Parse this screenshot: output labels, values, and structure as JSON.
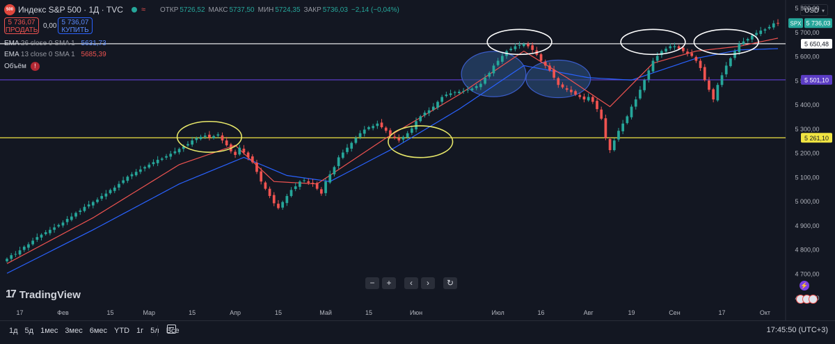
{
  "header": {
    "logo_text": "500",
    "title": "Индекс S&P 500 · 1Д · TVC",
    "wave_icon": "≈",
    "ohlc": [
      {
        "label": "ОТКР",
        "value": "5726,52"
      },
      {
        "label": "МАКС",
        "value": "5737,50"
      },
      {
        "label": "МИН",
        "value": "5724,35"
      },
      {
        "label": "ЗАКР",
        "value": "5736,03"
      }
    ],
    "change": "−2,14 (−0,04%)",
    "currency": "USD"
  },
  "trade": {
    "sell_price": "5 736,07",
    "sell_label": "ПРОДАТЬ",
    "spread": "0,00",
    "buy_price": "5 736,07",
    "buy_label": "КУПИТЬ"
  },
  "indicators": [
    {
      "name": "EMA",
      "params": "26 close 0 SMA 1",
      "value": "5631,73",
      "color": "#2962ff"
    },
    {
      "name": "EMA",
      "params": "13 close 0 SMA 1",
      "value": "5685,39",
      "color": "#ef5350"
    }
  ],
  "volume": {
    "label": "Объём",
    "warn": "!"
  },
  "nav_buttons": [
    "−",
    "+",
    "‹",
    "›",
    "↻"
  ],
  "branding": {
    "mark": "17",
    "text": "TradingView"
  },
  "timeframes": [
    "1д",
    "5д",
    "1мес",
    "3мес",
    "6мес",
    "YTD",
    "1г",
    "5л",
    "Все"
  ],
  "clock": "17:45:50 (UTC+3)",
  "colors": {
    "background": "#131722",
    "up": "#26a69a",
    "down": "#ef5350",
    "ema26": "#2962ff",
    "ema13": "#ef5350",
    "line_white": "#ffffff",
    "line_purple": "#5b3cc4",
    "line_yellow": "#f0e442",
    "ellipse_yellow": "#e8e86a",
    "ellipse_white": "#ffffff"
  },
  "chart_data": {
    "type": "candlestick",
    "y_range": [
      4560,
      5800
    ],
    "y_ticks": [
      5800,
      5700,
      5600,
      5500,
      5400,
      5300,
      5200,
      5100,
      5000,
      4900,
      4800,
      4700,
      4600
    ],
    "y_tick_labels": [
      "5 800,00",
      "5 700,00",
      "5 600,00",
      "5 500,00",
      "5 400,00",
      "5 300,00",
      "5 200,00",
      "5 100,00",
      "5 000,00",
      "4 900,00",
      "4 800,00",
      "4 700,00",
      "4 600,00"
    ],
    "x_labels": [
      {
        "label": "17",
        "index": 3
      },
      {
        "label": "Фев",
        "index": 13
      },
      {
        "label": "15",
        "index": 24
      },
      {
        "label": "Мар",
        "index": 33
      },
      {
        "label": "15",
        "index": 43
      },
      {
        "label": "Апр",
        "index": 53
      },
      {
        "label": "15",
        "index": 63
      },
      {
        "label": "Май",
        "index": 74
      },
      {
        "label": "15",
        "index": 84
      },
      {
        "label": "Июн",
        "index": 95
      },
      {
        "label": "Июл",
        "index": 114
      },
      {
        "label": "16",
        "index": 124
      },
      {
        "label": "Авг",
        "index": 135
      },
      {
        "label": "19",
        "index": 145
      },
      {
        "label": "Сен",
        "index": 155
      },
      {
        "label": "17",
        "index": 166
      },
      {
        "label": "Окт",
        "index": 176
      }
    ],
    "closes": [
      4760,
      4775,
      4780,
      4795,
      4810,
      4820,
      4835,
      4850,
      4860,
      4870,
      4880,
      4890,
      4900,
      4910,
      4925,
      4935,
      4950,
      4960,
      4975,
      4985,
      4995,
      5005,
      5020,
      5030,
      5045,
      5055,
      5070,
      5085,
      5100,
      5110,
      5120,
      5130,
      5140,
      5150,
      5160,
      5170,
      5175,
      5185,
      5195,
      5205,
      5215,
      5225,
      5235,
      5250,
      5260,
      5265,
      5270,
      5262,
      5268,
      5275,
      5250,
      5230,
      5205,
      5190,
      5220,
      5200,
      5180,
      5160,
      5120,
      5080,
      5050,
      5020,
      4990,
      4970,
      4995,
      5020,
      5045,
      5060,
      5080,
      5085,
      5075,
      5070,
      5050,
      5030,
      5080,
      5110,
      5140,
      5180,
      5200,
      5220,
      5240,
      5260,
      5280,
      5295,
      5305,
      5310,
      5320,
      5305,
      5290,
      5270,
      5260,
      5250,
      5265,
      5280,
      5300,
      5330,
      5350,
      5365,
      5375,
      5390,
      5410,
      5430,
      5440,
      5445,
      5450,
      5452,
      5455,
      5460,
      5465,
      5475,
      5485,
      5510,
      5530,
      5560,
      5580,
      5600,
      5620,
      5630,
      5640,
      5645,
      5650,
      5640,
      5625,
      5605,
      5580,
      5560,
      5540,
      5510,
      5480,
      5470,
      5460,
      5450,
      5440,
      5430,
      5420,
      5430,
      5410,
      5380,
      5340,
      5260,
      5210,
      5250,
      5290,
      5320,
      5350,
      5390,
      5420,
      5460,
      5500,
      5540,
      5580,
      5600,
      5620,
      5630,
      5640,
      5640,
      5630,
      5620,
      5610,
      5600,
      5580,
      5550,
      5500,
      5460,
      5420,
      5480,
      5520,
      5560,
      5590,
      5620,
      5650,
      5660,
      5670,
      5685,
      5695,
      5705,
      5710,
      5720,
      5735,
      5736
    ],
    "ohlc_note": "",
    "ema26": {
      "name": "EMA 26",
      "values_at": [
        [
          0,
          4700
        ],
        [
          20,
          4880
        ],
        [
          40,
          5070
        ],
        [
          55,
          5180
        ],
        [
          65,
          5105
        ],
        [
          75,
          5080
        ],
        [
          90,
          5220
        ],
        [
          105,
          5380
        ],
        [
          120,
          5560
        ],
        [
          135,
          5510
        ],
        [
          145,
          5500
        ],
        [
          160,
          5590
        ],
        [
          170,
          5625
        ],
        [
          182,
          5632
        ]
      ]
    },
    "ema13": {
      "name": "EMA 13",
      "values_at": [
        [
          0,
          4740
        ],
        [
          20,
          4930
        ],
        [
          40,
          5150
        ],
        [
          53,
          5230
        ],
        [
          62,
          5080
        ],
        [
          72,
          5070
        ],
        [
          88,
          5260
        ],
        [
          105,
          5440
        ],
        [
          120,
          5620
        ],
        [
          130,
          5510
        ],
        [
          140,
          5390
        ],
        [
          150,
          5570
        ],
        [
          160,
          5620
        ],
        [
          170,
          5640
        ],
        [
          182,
          5685
        ]
      ]
    },
    "price_lines": [
      {
        "value": 5650.48,
        "label": "5 650,48",
        "color": "#ffffff"
      },
      {
        "value": 5501.1,
        "label": "5 501,10",
        "color": "#5b3cc4"
      },
      {
        "value": 5261.1,
        "label": "5 261,10",
        "color": "#f0e442"
      }
    ],
    "last_price": {
      "symbol": "SPX",
      "label": "5 736,03",
      "value": 5736.03
    },
    "annotations": [
      {
        "type": "ellipse",
        "color": "#e8e86a",
        "fill": "none",
        "center_index": 47,
        "center_value": 5265,
        "rx_bars": 7,
        "ry_value": 58
      },
      {
        "type": "ellipse",
        "color": "#e8e86a",
        "fill": "none",
        "center_index": 96,
        "center_value": 5245,
        "rx_bars": 7,
        "ry_value": 60
      },
      {
        "type": "ellipse",
        "color": "#3a5cc8",
        "fill": "#2a4a78",
        "center_index": 113,
        "center_value": 5525,
        "rx_bars": 7,
        "ry_value": 88
      },
      {
        "type": "ellipse",
        "color": "#3a5cc8",
        "fill": "#2a4a78",
        "center_index": 128,
        "center_value": 5505,
        "rx_bars": 7,
        "ry_value": 72
      },
      {
        "type": "ellipse",
        "color": "#ffffff",
        "fill": "none",
        "center_index": 119,
        "center_value": 5658,
        "rx_bars": 7,
        "ry_value": 46
      },
      {
        "type": "ellipse",
        "color": "#ffffff",
        "fill": "none",
        "center_index": 150,
        "center_value": 5658,
        "rx_bars": 7,
        "ry_value": 46
      },
      {
        "type": "ellipse",
        "color": "#ffffff",
        "fill": "none",
        "center_index": 167,
        "center_value": 5658,
        "rx_bars": 7,
        "ry_value": 46
      }
    ]
  }
}
